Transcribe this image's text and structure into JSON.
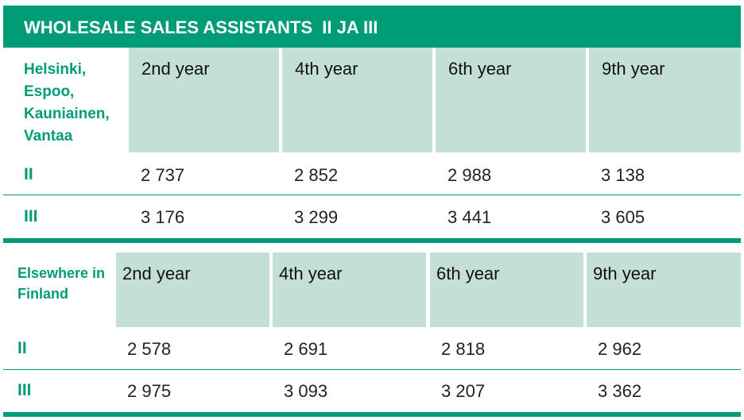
{
  "title": "WHOLESALE SALES ASSISTANTS  II JA III",
  "sections": [
    {
      "region": [
        "Helsinki,",
        "Espoo,",
        "Kauniainen,",
        "Vantaa"
      ],
      "headers": [
        "2nd year",
        "4th year",
        "6th year",
        "9th year"
      ],
      "rows": [
        {
          "label": "II",
          "values": [
            "2 737",
            "2 852",
            "2 988",
            "3 138"
          ]
        },
        {
          "label": "III",
          "values": [
            "3 176",
            "3 299",
            "3 441",
            "3 605"
          ]
        }
      ]
    },
    {
      "region": [
        "Elsewhere in",
        "Finland"
      ],
      "headers": [
        "2nd year",
        "4th year",
        "6th year",
        "9th year"
      ],
      "rows": [
        {
          "label": "II",
          "values": [
            "2 578",
            "2 691",
            "2 818",
            "2 962"
          ]
        },
        {
          "label": "III",
          "values": [
            "2 975",
            "3 093",
            "3 207",
            "3 362"
          ]
        }
      ]
    }
  ]
}
